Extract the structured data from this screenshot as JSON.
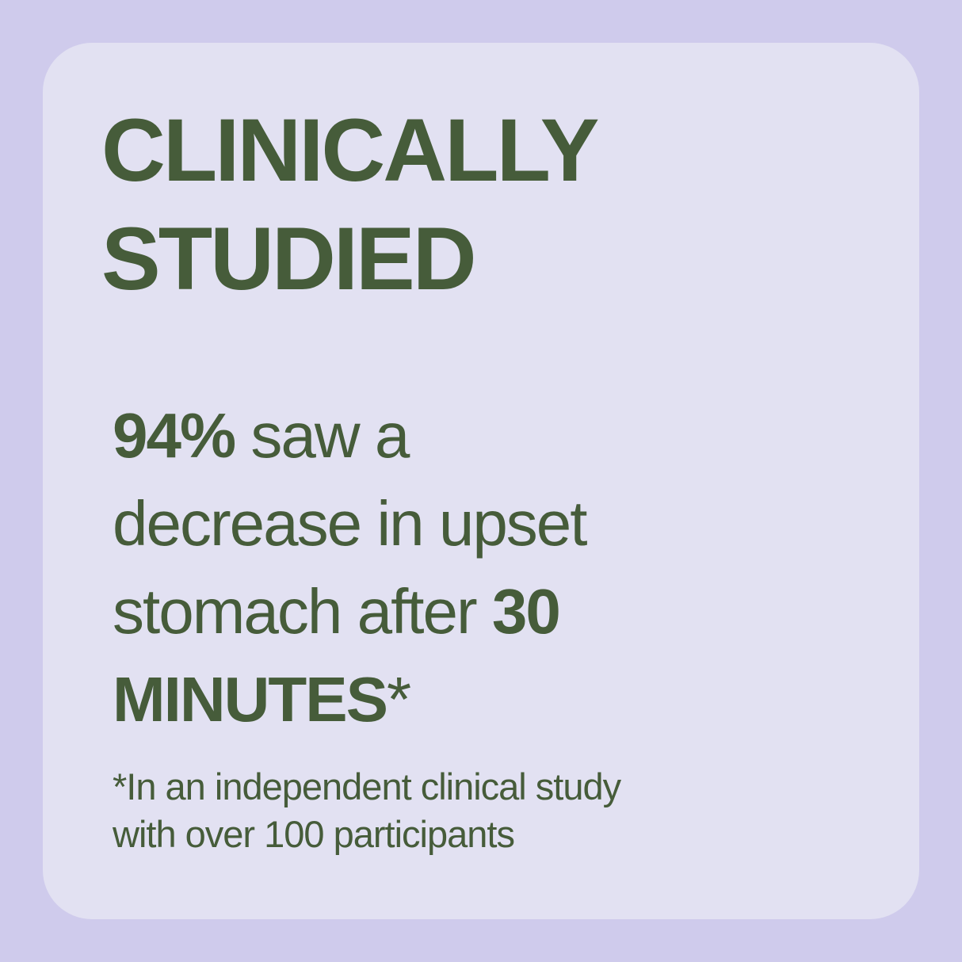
{
  "heading": {
    "lines": [
      "CLINICALLY",
      "STUDIED"
    ]
  },
  "statement": {
    "parts": [
      "94%",
      "saw a",
      "decrease in upset",
      "stomach after",
      "30",
      "MINUTES",
      "*"
    ]
  },
  "footnote": {
    "lines": [
      "*In an independent clinical study",
      "with over 100 participants"
    ]
  }
}
